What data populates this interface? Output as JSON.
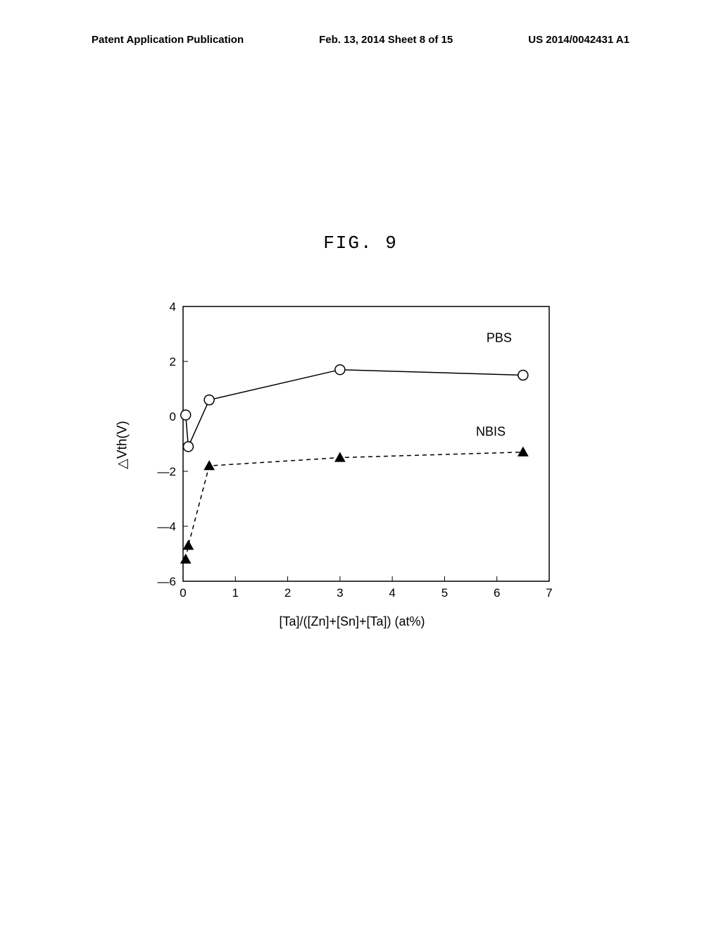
{
  "header": {
    "left": "Patent Application Publication",
    "center": "Feb. 13, 2014  Sheet 8 of 15",
    "right": "US 2014/0042431 A1"
  },
  "figure": {
    "title": "FIG. 9"
  },
  "chart": {
    "type": "line",
    "xlabel": "[Ta]/([Zn]+[Sn]+[Ta]) (at%)",
    "ylabel": "△Vth(V)",
    "xlim": [
      0,
      7
    ],
    "ylim": [
      -6,
      4
    ],
    "xticks": [
      0,
      1,
      2,
      3,
      4,
      5,
      6,
      7
    ],
    "yticks": [
      -6,
      -4,
      -2,
      0,
      2,
      4
    ],
    "tick_fontsize": 17,
    "label_fontsize": 18,
    "background_color": "#ffffff",
    "axis_color": "#000000",
    "line_width": 1.5,
    "series": [
      {
        "name": "PBS",
        "label": "PBS",
        "label_pos": {
          "x": 5.8,
          "y": 2.7
        },
        "marker": "circle-open",
        "marker_size": 7,
        "line_style": "solid",
        "color": "#000000",
        "data": [
          {
            "x": 0.05,
            "y": 0.05
          },
          {
            "x": 0.1,
            "y": -1.1
          },
          {
            "x": 0.5,
            "y": 0.6
          },
          {
            "x": 3.0,
            "y": 1.7
          },
          {
            "x": 6.5,
            "y": 1.5
          }
        ]
      },
      {
        "name": "NBIS",
        "label": "NBIS",
        "label_pos": {
          "x": 5.6,
          "y": -0.7
        },
        "marker": "triangle-filled",
        "marker_size": 7,
        "line_style": "dashed",
        "color": "#000000",
        "data": [
          {
            "x": 0.05,
            "y": -5.2
          },
          {
            "x": 0.1,
            "y": -4.7
          },
          {
            "x": 0.5,
            "y": -1.8
          },
          {
            "x": 3.0,
            "y": -1.5
          },
          {
            "x": 6.5,
            "y": -1.3
          }
        ]
      }
    ]
  }
}
